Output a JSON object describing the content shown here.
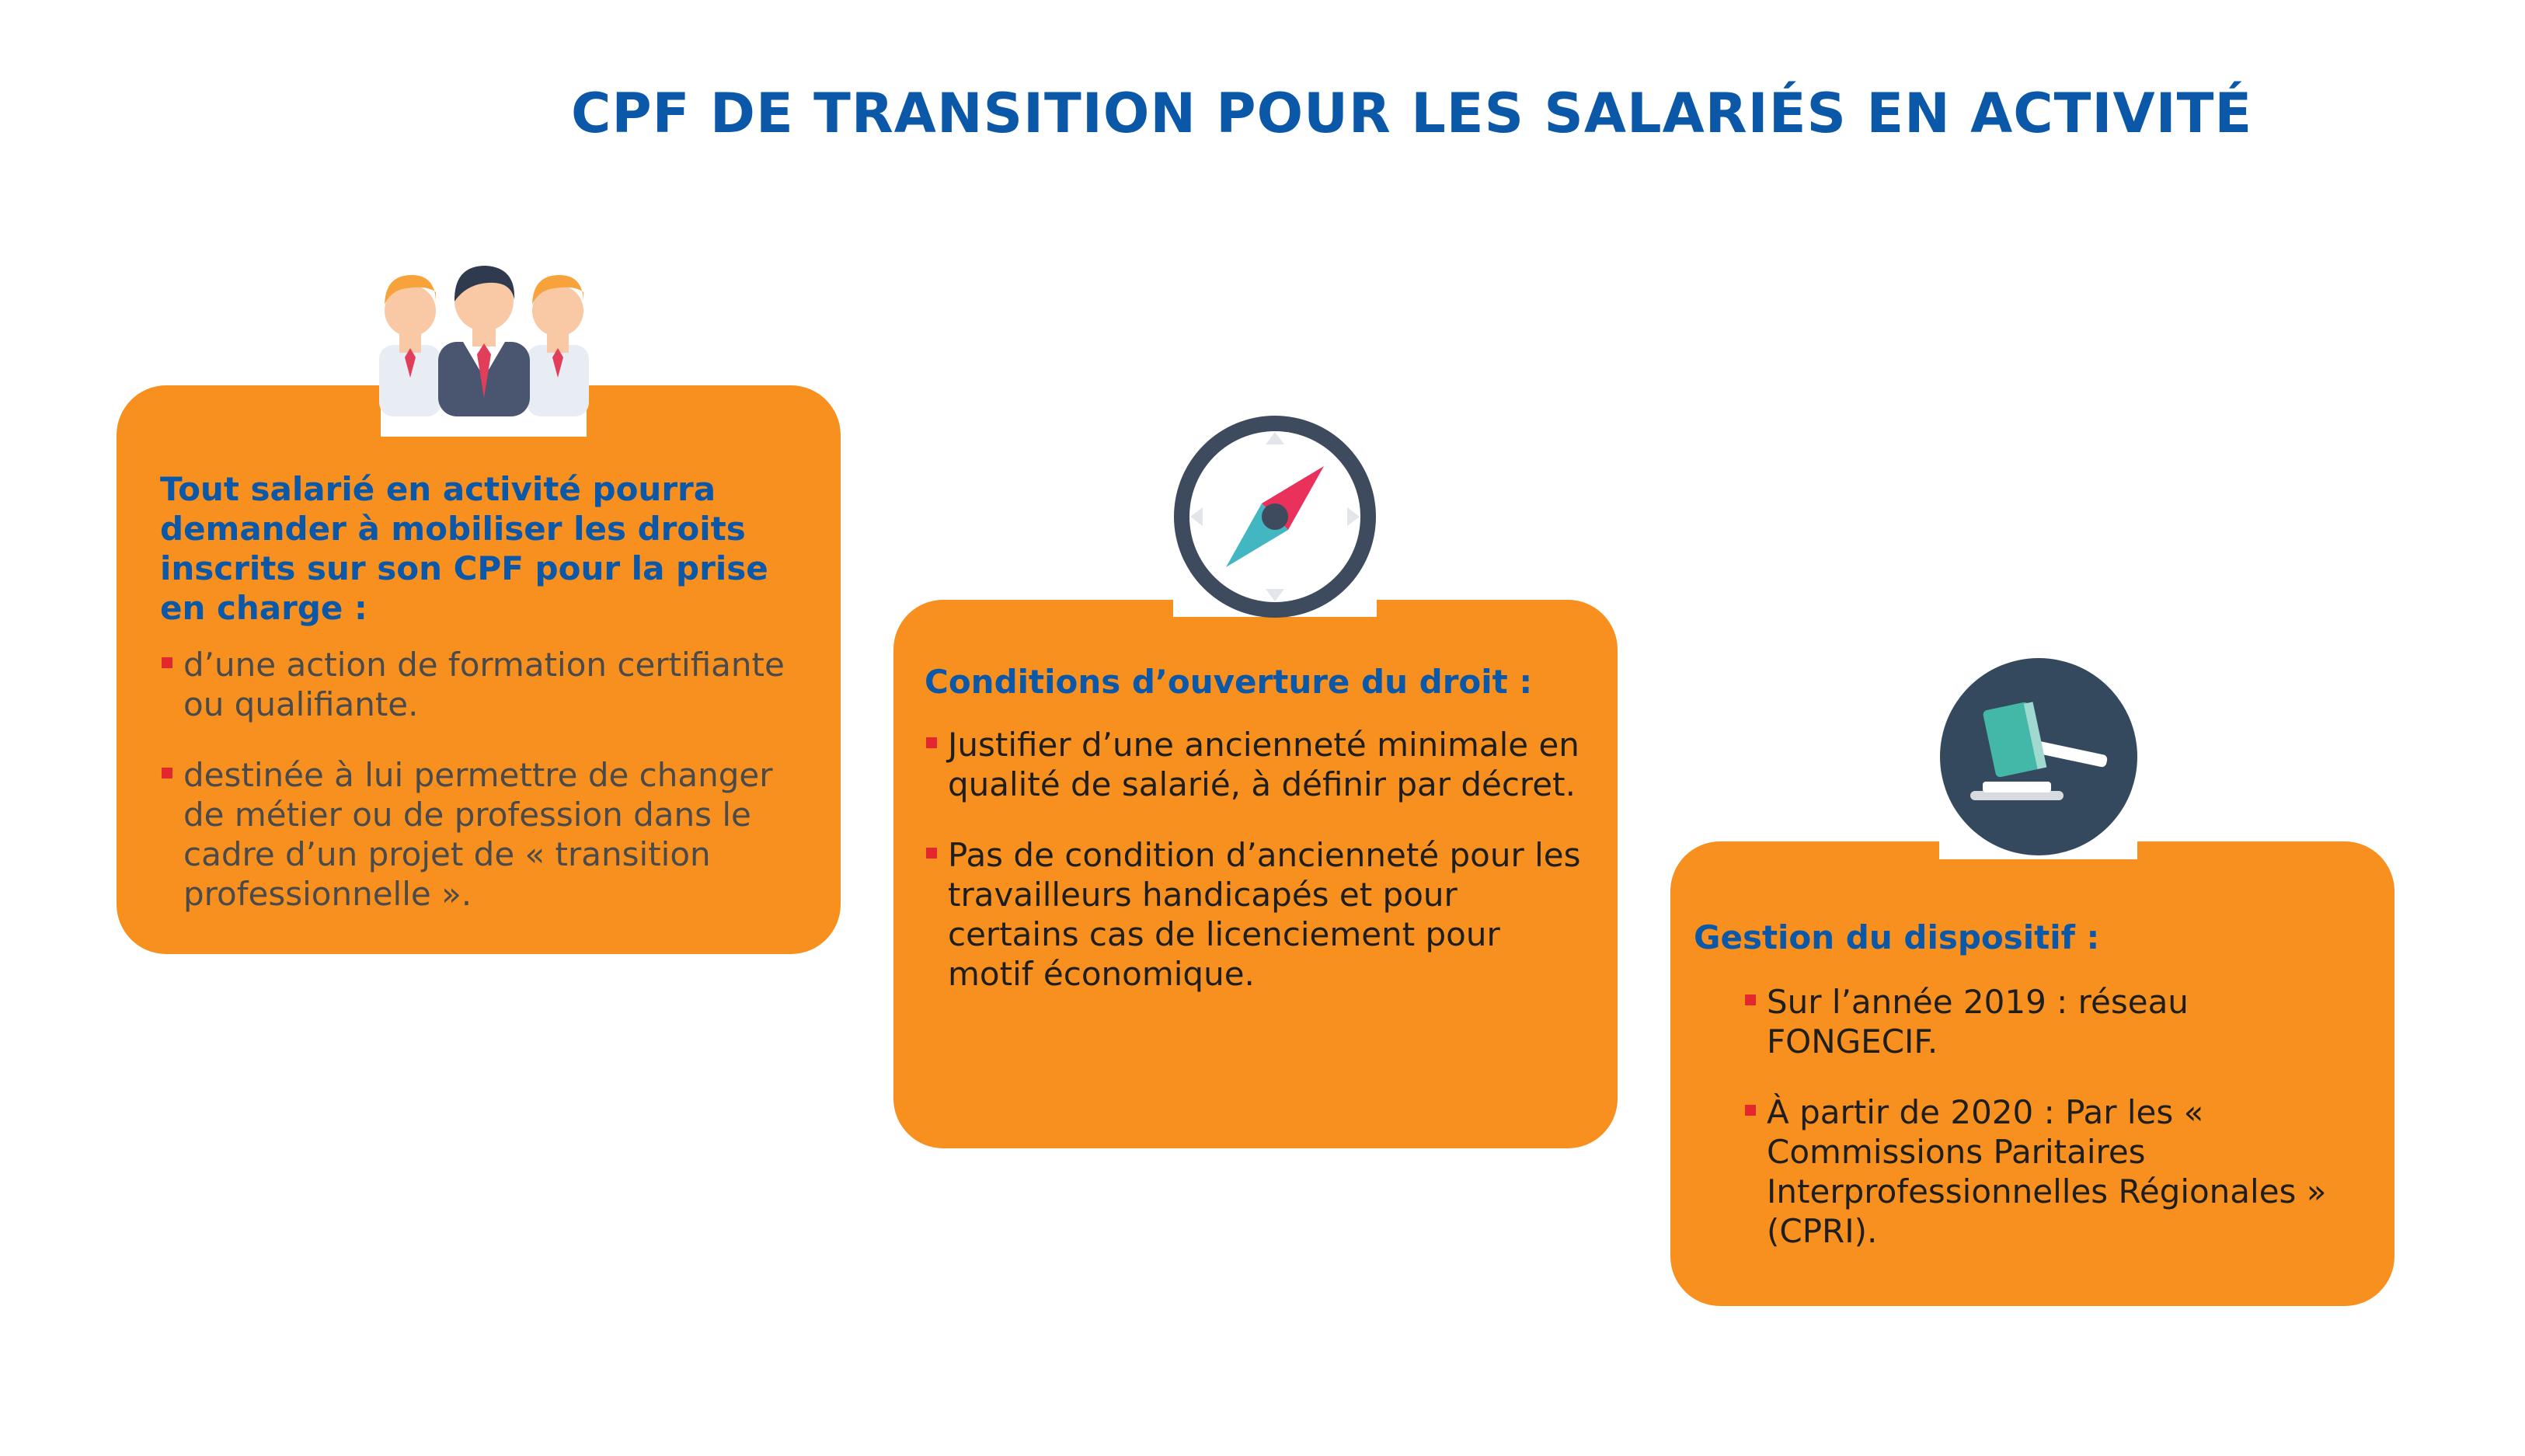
{
  "title": "CPF DE TRANSITION POUR LES SALARIÉS EN ACTIVITÉ",
  "colors": {
    "accent": "#0b57a8",
    "card": "#f7901e",
    "bullet": "#e4262f"
  },
  "cards": [
    {
      "icon": "people-icon",
      "heading": "Tout salarié en activité pourra demander à mobiliser les droits inscrits sur son CPF pour la prise en charge :",
      "bullets": [
        "d’une action de formation certifiante ou qualifiante.",
        "destinée à lui permettre de changer de métier ou de profession dans le cadre d’un projet de « transition professionnelle »."
      ]
    },
    {
      "icon": "compass-icon",
      "heading": "Conditions d’ouverture du droit :",
      "bullets": [
        "Justifier d’une ancienneté minimale en qualité de salarié, à définir par décret.",
        "Pas de condition d’ancienneté pour les travailleurs handicapés et pour certains cas de licenciement pour motif économique."
      ]
    },
    {
      "icon": "gavel-icon",
      "heading": "Gestion du dispositif :",
      "bullets": [
        "Sur l’année 2019 : réseau FONGECIF.",
        "À partir de 2020 : Par les « Commissions Paritaires Interprofessionnelles Régionales » (CPRI)."
      ]
    }
  ]
}
